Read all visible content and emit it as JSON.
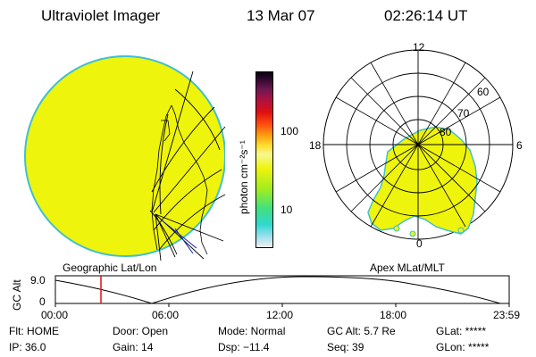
{
  "header": {
    "instrument": "Ultraviolet Imager",
    "date": "13 Mar 07",
    "time": "02:26:14 UT"
  },
  "colors": {
    "aurora_fill": "#eef40c",
    "disk_edge": "#40c0d0",
    "marker": "#e01010"
  },
  "colorbar": {
    "label": "photon cm⁻²s⁻¹",
    "ticks": [
      "100",
      "10"
    ],
    "stops": [
      "#f0f0f0",
      "#9fe0ee",
      "#30d8d0",
      "#40e080",
      "#a0ec20",
      "#eef40c",
      "#f8f890",
      "#ffe030",
      "#ff9c10",
      "#ff5010",
      "#e01010",
      "#b01040",
      "#701850",
      "#300830",
      "#080010"
    ]
  },
  "geo_panel": {
    "label": "Geographic Lat/Lon"
  },
  "polar_panel": {
    "label": "Apex MLat/MLT",
    "mlt_labels": {
      "top": "12",
      "left": "18",
      "right": "6",
      "bottom": "0"
    },
    "lat_labels": [
      "60",
      "70",
      "80"
    ]
  },
  "altitude_plot": {
    "ylabel": "GC Alt",
    "ymax": "9.0",
    "ymin": "0",
    "time_ticks": [
      "00:00",
      "06:00",
      "12:00",
      "18:00",
      "23:59"
    ],
    "current_time_hours": 2.44
  },
  "status": {
    "flt": "Flt: HOME",
    "ip": "IP: 36.0",
    "door": "Door: Open",
    "gain": "Gain: 14",
    "mode": "Mode: Normal",
    "dsp": "Dsp:  −11.4",
    "gc_alt": "GC Alt: 5.7 Re",
    "seq": "Seq: 39",
    "glat": "GLat: *****",
    "glon": "GLon: *****"
  }
}
